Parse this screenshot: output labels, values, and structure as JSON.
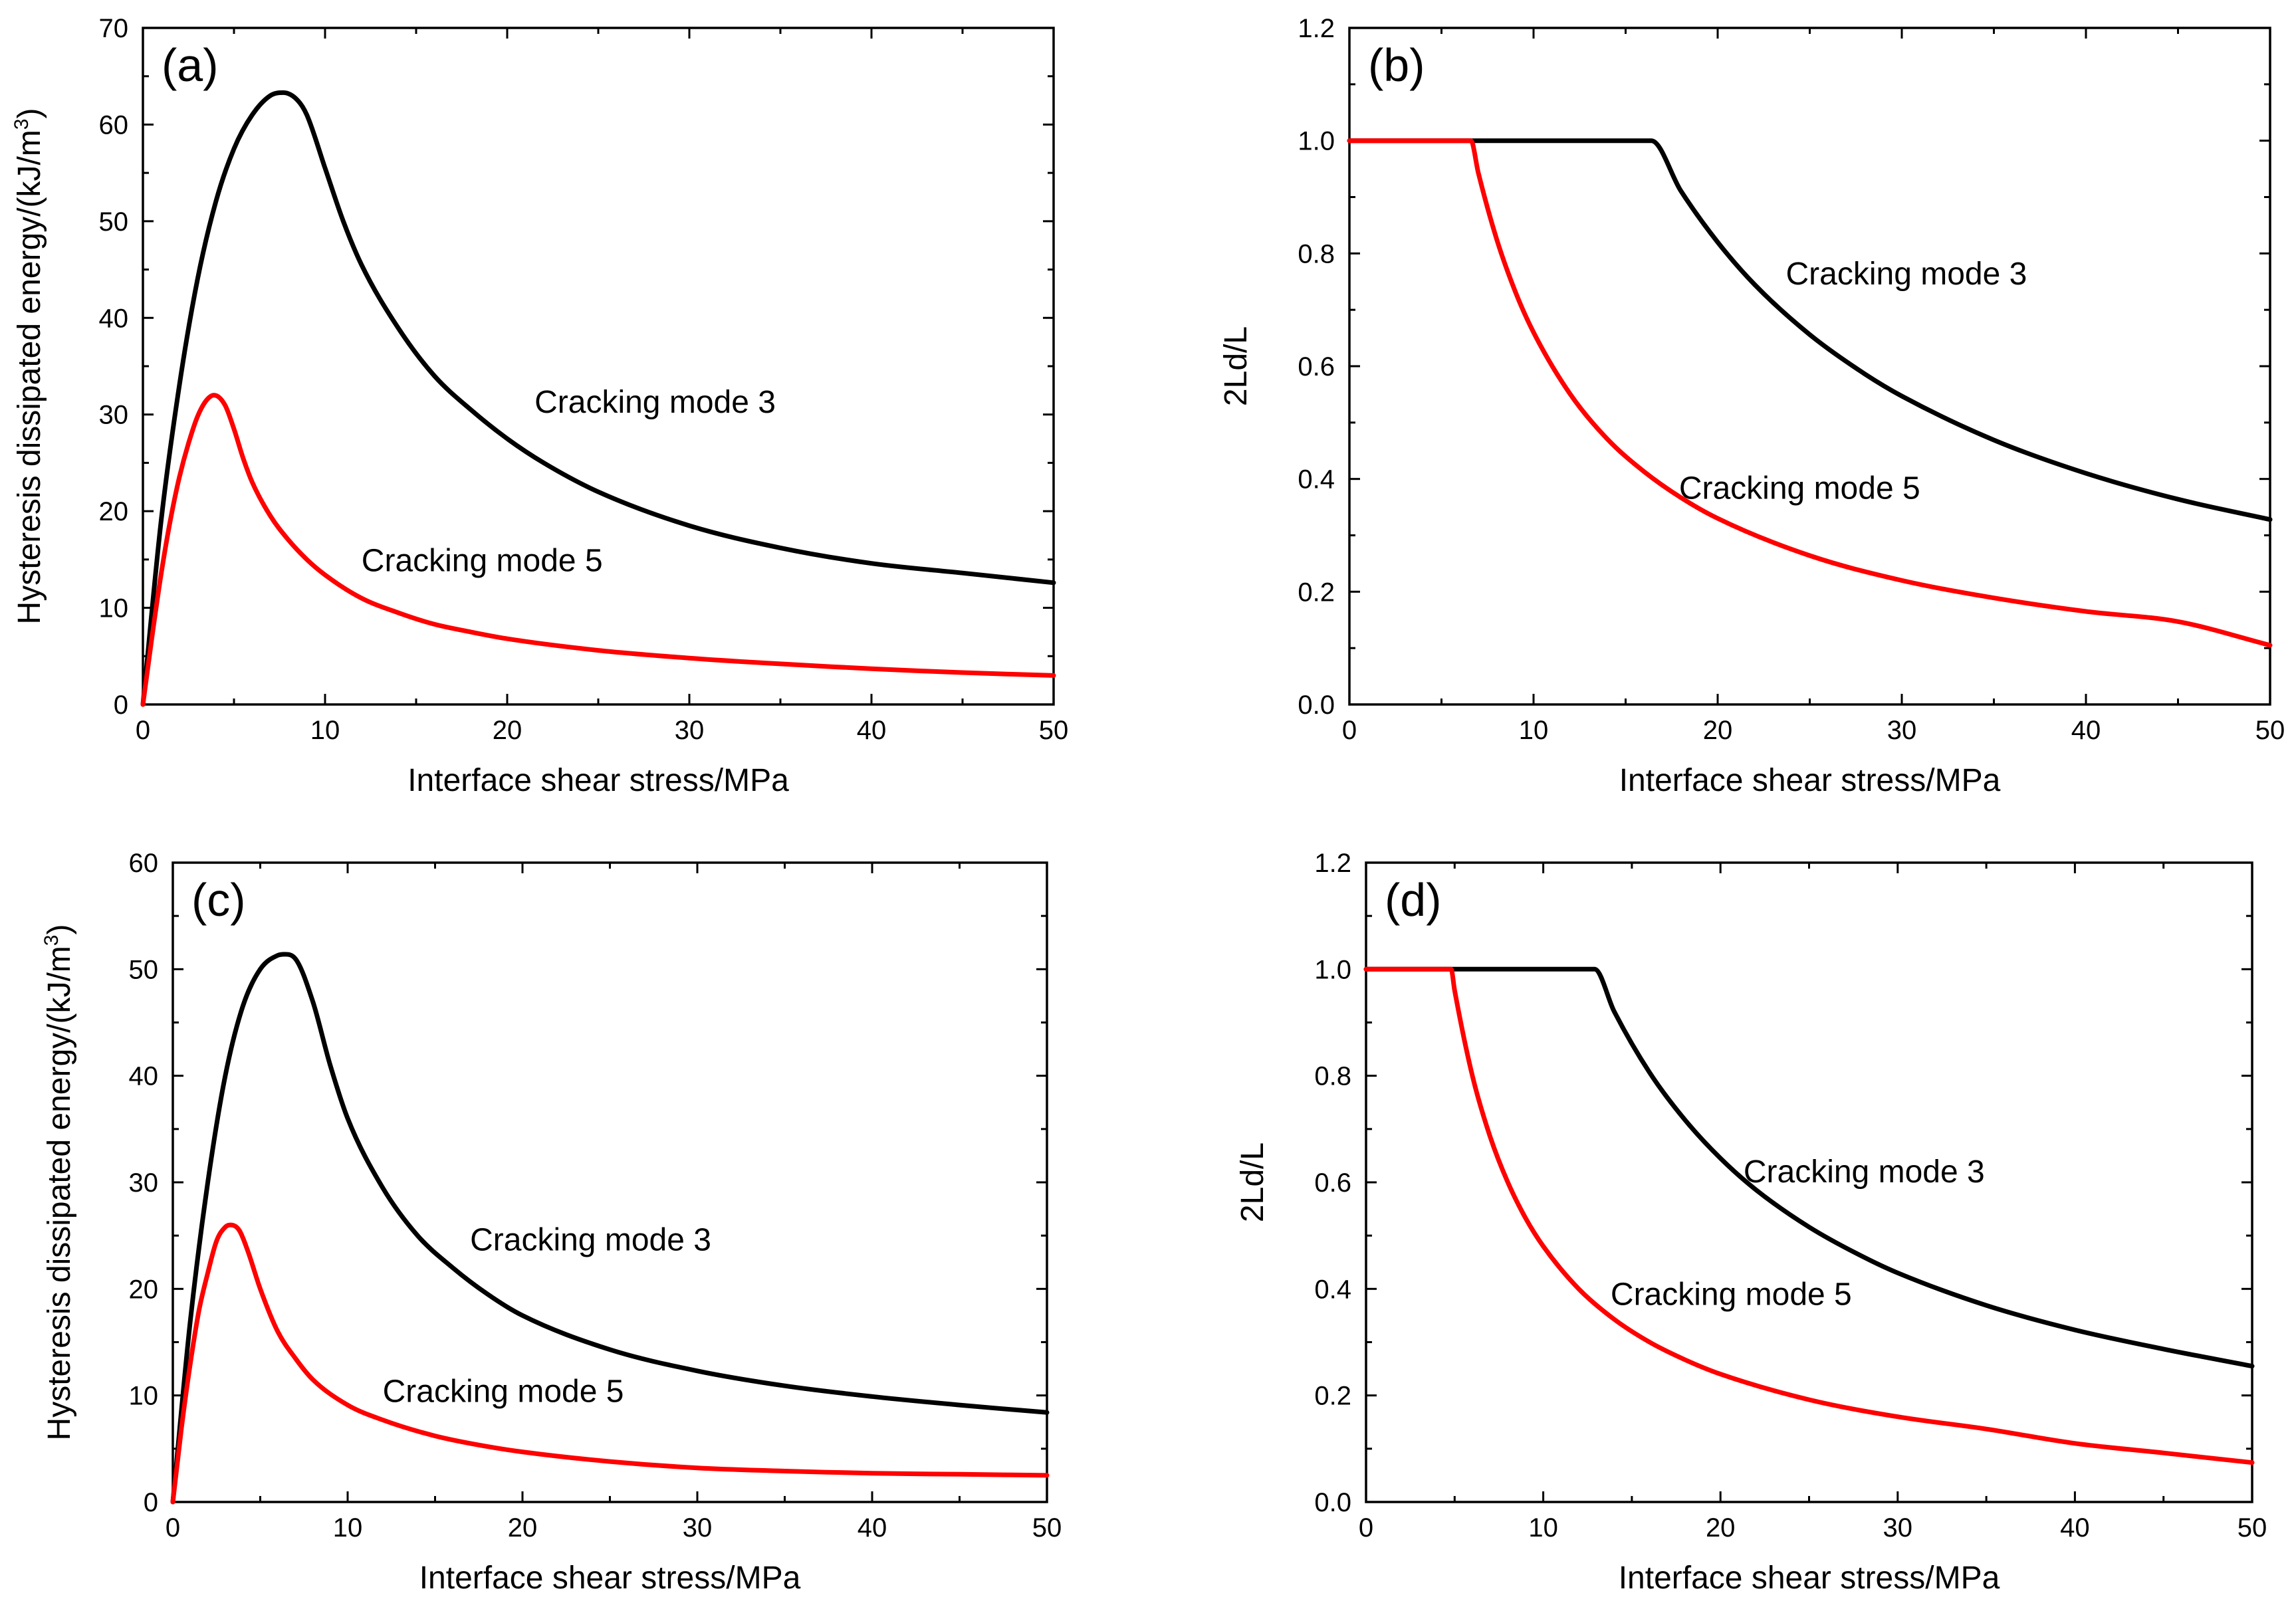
{
  "chart_data": [
    {
      "type": "line",
      "panel_label": "(a)",
      "xlabel": "Interface shear stress/MPa",
      "ylabel": "Hysteresis dissipated energy/(kJ/m",
      "ylabel_sup": "3",
      "ylabel_end": ")",
      "xlim": [
        0,
        50
      ],
      "ylim": [
        0,
        70
      ],
      "xticks": [
        0,
        10,
        20,
        30,
        40,
        50
      ],
      "yticks": [
        0,
        10,
        20,
        30,
        40,
        50,
        60,
        70
      ],
      "xtick_labels": [
        "0",
        "10",
        "20",
        "30",
        "40",
        "50"
      ],
      "ytick_labels": [
        "0",
        "10",
        "20",
        "30",
        "40",
        "50",
        "60",
        "70"
      ],
      "grid": false,
      "series": [
        {
          "name": "Cracking mode 3",
          "color": "#000000",
          "x": [
            0,
            1,
            2,
            3,
            4,
            5,
            6,
            7,
            7.7,
            8.5,
            9,
            10,
            11,
            12,
            14,
            16,
            18,
            20,
            22,
            25,
            30,
            35,
            40,
            45,
            50
          ],
          "y": [
            0,
            19,
            33,
            44,
            52,
            57.5,
            61,
            63,
            63.3,
            62.5,
            61,
            55.5,
            50,
            45.5,
            39,
            34,
            30.5,
            27.5,
            25,
            22,
            18.5,
            16.2,
            14.6,
            13.6,
            12.6
          ]
        },
        {
          "name": "Cracking mode 5",
          "color": "#ff0000",
          "x": [
            0,
            0.5,
            1,
            1.5,
            2,
            2.5,
            3,
            3.5,
            3.9,
            4.5,
            5,
            5.5,
            6,
            7,
            8,
            9,
            10,
            12,
            14,
            16,
            18,
            20,
            25,
            30,
            35,
            40,
            45,
            50
          ],
          "y": [
            0,
            7,
            13.5,
            19,
            23.5,
            27,
            29.8,
            31.5,
            32,
            31,
            28.5,
            25.5,
            23,
            19.5,
            17,
            15,
            13.4,
            11,
            9.5,
            8.3,
            7.5,
            6.8,
            5.6,
            4.8,
            4.2,
            3.7,
            3.3,
            3
          ]
        }
      ],
      "annotations": [
        {
          "text": "Cracking mode 3",
          "x": 21.5,
          "y": 30.2
        },
        {
          "text": "Cracking mode 5",
          "x": 12,
          "y": 13.8
        }
      ]
    },
    {
      "type": "line",
      "panel_label": "(b)",
      "xlabel": "Interface shear stress/MPa",
      "ylabel": "2Ld/L",
      "xlim": [
        0,
        50
      ],
      "ylim": [
        0,
        1.2
      ],
      "xticks": [
        0,
        10,
        20,
        30,
        40,
        50
      ],
      "yticks": [
        0,
        0.2,
        0.4,
        0.6,
        0.8,
        1.0,
        1.2
      ],
      "xtick_labels": [
        "0",
        "10",
        "20",
        "30",
        "40",
        "50"
      ],
      "ytick_labels": [
        "0.0",
        "0.2",
        "0.4",
        "0.6",
        "0.8",
        "1.0",
        "1.2"
      ],
      "grid": false,
      "series": [
        {
          "name": "Cracking mode 3",
          "color": "#000000",
          "x": [
            0,
            16.4,
            18,
            20,
            22,
            25,
            28,
            30,
            35,
            40,
            45,
            50
          ],
          "y": [
            1.0,
            1.0,
            0.911,
            0.82,
            0.745,
            0.656,
            0.586,
            0.547,
            0.469,
            0.41,
            0.364,
            0.328
          ]
        },
        {
          "name": "Cracking mode 5",
          "color": "#ff0000",
          "x": [
            0,
            6.6,
            7,
            8,
            9,
            10,
            12,
            14,
            16,
            18,
            20,
            25,
            30,
            35,
            40,
            45,
            50
          ],
          "y": [
            1.0,
            1.0,
            0.943,
            0.825,
            0.733,
            0.66,
            0.55,
            0.471,
            0.413,
            0.367,
            0.33,
            0.264,
            0.22,
            0.189,
            0.165,
            0.147,
            0.105
          ]
        }
      ],
      "annotations": [
        {
          "text": "Cracking mode 3",
          "x": 23.7,
          "y": 0.745
        },
        {
          "text": "Cracking mode 5",
          "x": 17.9,
          "y": 0.365
        }
      ]
    },
    {
      "type": "line",
      "panel_label": "(c)",
      "xlabel": "Interface shear stress/MPa",
      "ylabel": "Hysteresis dissipated energy/(kJ/m",
      "ylabel_sup": "3",
      "ylabel_end": ")",
      "xlim": [
        0,
        50
      ],
      "ylim": [
        0,
        60
      ],
      "xticks": [
        0,
        10,
        20,
        30,
        40,
        50
      ],
      "yticks": [
        0,
        10,
        20,
        30,
        40,
        50,
        60
      ],
      "xtick_labels": [
        "0",
        "10",
        "20",
        "30",
        "40",
        "50"
      ],
      "ytick_labels": [
        "0",
        "10",
        "20",
        "30",
        "40",
        "50",
        "60"
      ],
      "grid": false,
      "series": [
        {
          "name": "Cracking mode 3",
          "color": "#000000",
          "x": [
            0,
            1,
            2,
            3,
            4,
            5,
            6,
            6.4,
            7,
            8,
            9,
            10,
            12,
            14,
            16,
            18,
            20,
            25,
            30,
            35,
            40,
            45,
            50
          ],
          "y": [
            0,
            17,
            30,
            40,
            46.5,
            50,
            51.3,
            51.4,
            51,
            47,
            41,
            36,
            29.5,
            25,
            22,
            19.5,
            17.5,
            14.3,
            12.3,
            10.9,
            9.9,
            9.1,
            8.4
          ]
        },
        {
          "name": "Cracking mode 5",
          "color": "#ff0000",
          "x": [
            0,
            0.5,
            1,
            1.5,
            2,
            2.5,
            3,
            3.3,
            3.8,
            4.3,
            5,
            6,
            7,
            8,
            10,
            12,
            15,
            18,
            20,
            25,
            30,
            35,
            40,
            45,
            50
          ],
          "y": [
            0,
            7,
            13,
            18,
            21.5,
            24.5,
            25.8,
            26,
            25.5,
            23.5,
            20,
            16,
            13.5,
            11.5,
            9.1,
            7.7,
            6.2,
            5.2,
            4.7,
            3.8,
            3.2,
            2.9,
            2.7,
            2.6,
            2.5
          ]
        }
      ],
      "annotations": [
        {
          "text": "Cracking mode 3",
          "x": 17,
          "y": 23.6
        },
        {
          "text": "Cracking mode 5",
          "x": 12,
          "y": 9.4
        }
      ]
    },
    {
      "type": "line",
      "panel_label": "(d)",
      "xlabel": "Interface shear stress/MPa",
      "ylabel": "2Ld/L",
      "xlim": [
        0,
        50
      ],
      "ylim": [
        0,
        1.2
      ],
      "xticks": [
        0,
        10,
        20,
        30,
        40,
        50
      ],
      "yticks": [
        0,
        0.2,
        0.4,
        0.6,
        0.8,
        1.0,
        1.2
      ],
      "xtick_labels": [
        "0",
        "10",
        "20",
        "30",
        "40",
        "50"
      ],
      "ytick_labels": [
        "0.0",
        "0.2",
        "0.4",
        "0.6",
        "0.8",
        "1.0",
        "1.2"
      ],
      "grid": false,
      "series": [
        {
          "name": "Cracking mode 3",
          "color": "#000000",
          "x": [
            0,
            12.9,
            14,
            16,
            18,
            20,
            22,
            25,
            28,
            30,
            35,
            40,
            45,
            50
          ],
          "y": [
            1.0,
            1.0,
            0.921,
            0.806,
            0.717,
            0.645,
            0.586,
            0.516,
            0.461,
            0.43,
            0.369,
            0.323,
            0.287,
            0.255
          ]
        },
        {
          "name": "Cracking mode 5",
          "color": "#ff0000",
          "x": [
            0,
            4.8,
            5,
            6,
            7,
            8,
            9,
            10,
            12,
            14,
            16,
            18,
            20,
            25,
            30,
            35,
            40,
            45,
            50
          ],
          "y": [
            1.0,
            1.0,
            0.96,
            0.8,
            0.686,
            0.6,
            0.533,
            0.48,
            0.4,
            0.343,
            0.3,
            0.267,
            0.24,
            0.192,
            0.16,
            0.137,
            0.11,
            0.092,
            0.074
          ]
        }
      ],
      "annotations": [
        {
          "text": "Cracking mode 3",
          "x": 21.3,
          "y": 0.6
        },
        {
          "text": "Cracking mode 5",
          "x": 13.8,
          "y": 0.37
        }
      ]
    }
  ]
}
